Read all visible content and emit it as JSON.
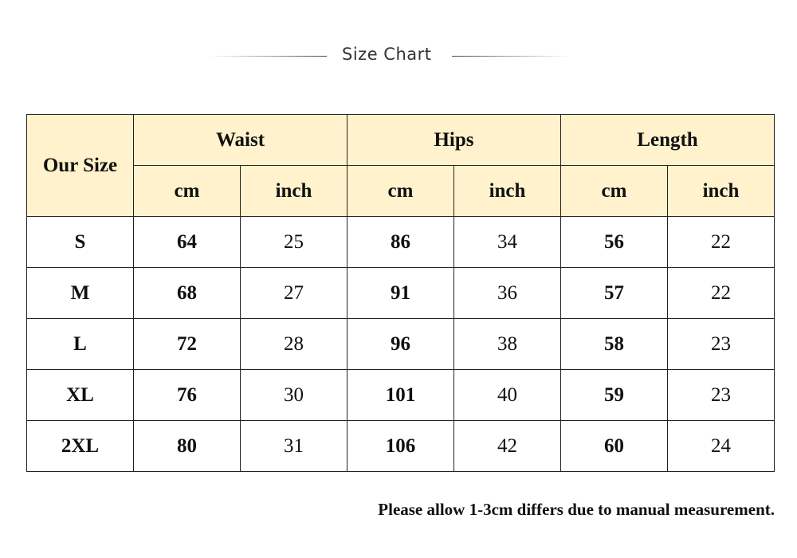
{
  "title": "Size Chart",
  "header": {
    "size": "Our Size",
    "groups": [
      "Waist",
      "Hips",
      "Length"
    ],
    "units": [
      "cm",
      "inch",
      "cm",
      "inch",
      "cm",
      "inch"
    ]
  },
  "colors": {
    "header_bg": "#FFF2CC",
    "border": "#222222"
  },
  "rows": [
    {
      "size": "S",
      "values": [
        "64",
        "25",
        "86",
        "34",
        "56",
        "22"
      ]
    },
    {
      "size": "M",
      "values": [
        "68",
        "27",
        "91",
        "36",
        "57",
        "22"
      ]
    },
    {
      "size": "L",
      "values": [
        "72",
        "28",
        "96",
        "38",
        "58",
        "23"
      ]
    },
    {
      "size": "XL",
      "values": [
        "76",
        "30",
        "101",
        "40",
        "59",
        "23"
      ]
    },
    {
      "size": "2XL",
      "values": [
        "80",
        "31",
        "106",
        "42",
        "60",
        "24"
      ]
    }
  ],
  "note": "Please allow 1-3cm differs due to manual measurement."
}
